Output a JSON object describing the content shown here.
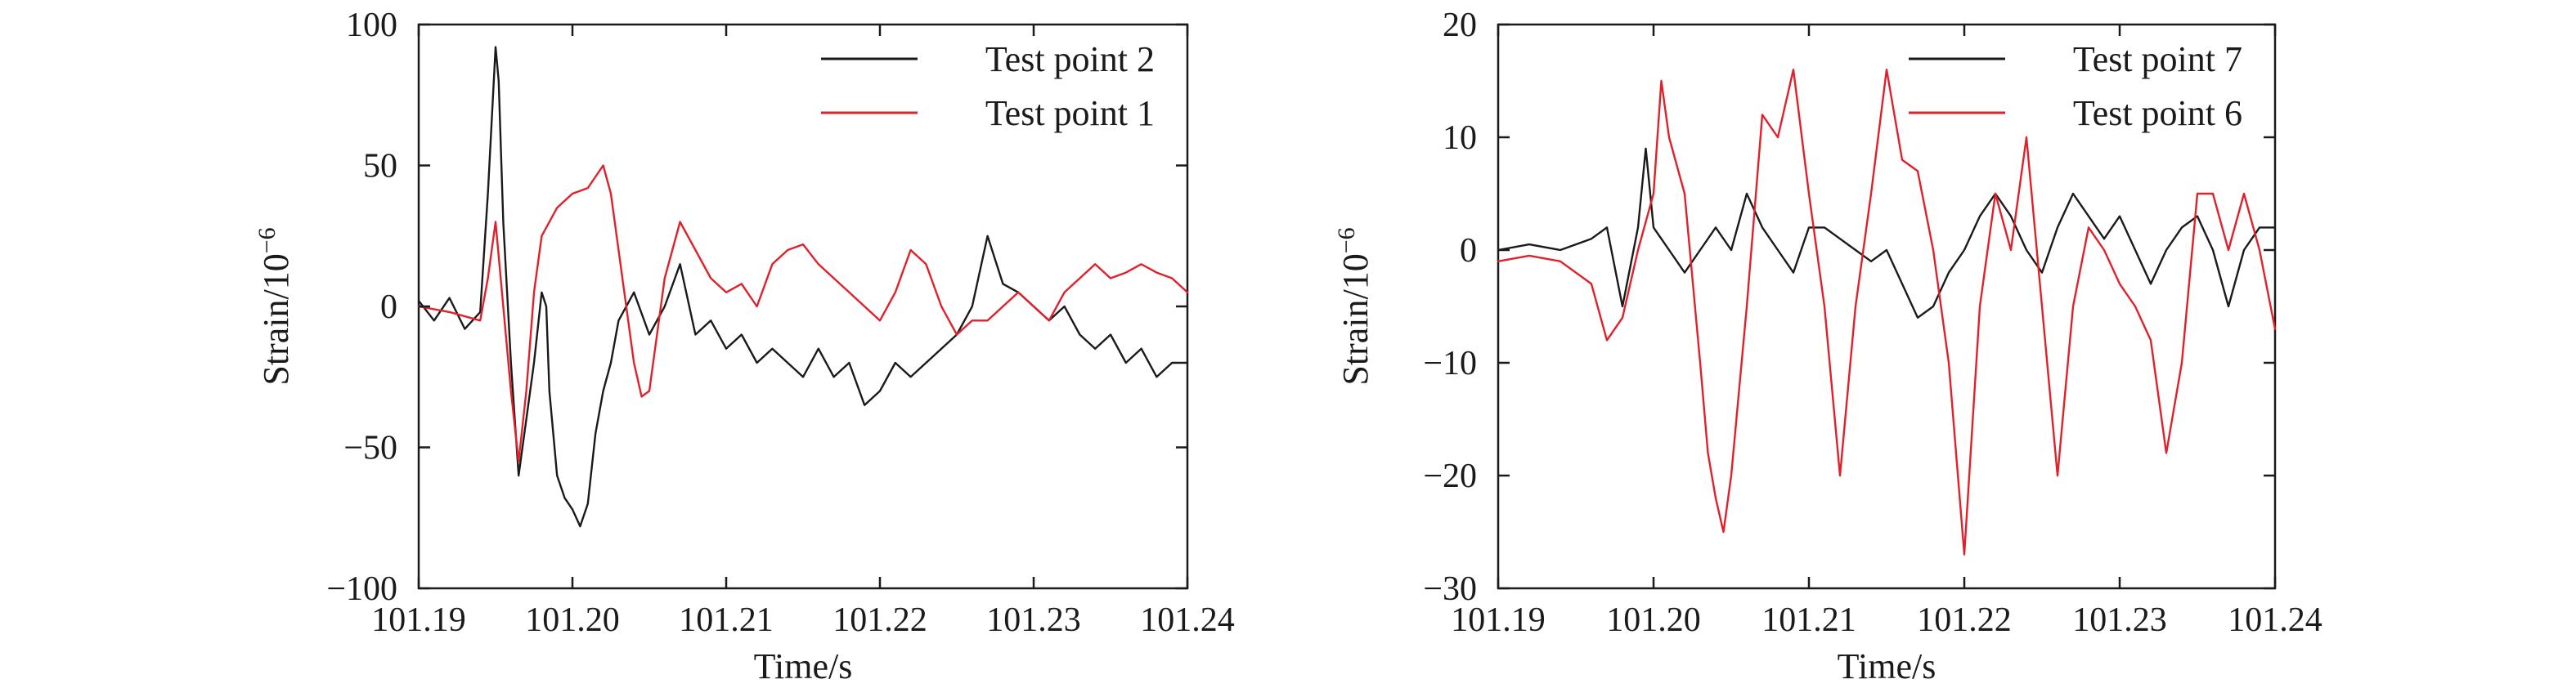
{
  "chart_data": [
    {
      "type": "line",
      "xlabel": "Time/s",
      "ylabel": "Strain/10",
      "ylabel_exponent": "−6",
      "xlim": [
        101.19,
        101.24
      ],
      "ylim": [
        -100,
        100
      ],
      "xticks": [
        101.19,
        101.2,
        101.21,
        101.22,
        101.23,
        101.24
      ],
      "xtick_labels": [
        "101.19",
        "101.20",
        "101.21",
        "101.22",
        "101.23",
        "101.24"
      ],
      "yticks": [
        -100,
        -50,
        0,
        50,
        100
      ],
      "ytick_labels": [
        "−100",
        "−50",
        "0",
        "50",
        "100"
      ],
      "grid": false,
      "legend_position": "top-right",
      "series": [
        {
          "name": "Test point 2",
          "color": "#1a1a1a",
          "x": [
            101.19,
            101.191,
            101.192,
            101.193,
            101.194,
            101.1945,
            101.195,
            101.1952,
            101.1955,
            101.196,
            101.1965,
            101.197,
            101.1975,
            101.198,
            101.1983,
            101.1985,
            101.199,
            101.1995,
            101.2,
            101.2005,
            101.201,
            101.2015,
            101.202,
            101.2025,
            101.203,
            101.204,
            101.205,
            101.206,
            101.207,
            101.208,
            101.209,
            101.21,
            101.211,
            101.212,
            101.213,
            101.214,
            101.215,
            101.216,
            101.217,
            101.218,
            101.219,
            101.22,
            101.221,
            101.222,
            101.223,
            101.224,
            101.225,
            101.226,
            101.227,
            101.228,
            101.229,
            101.23,
            101.231,
            101.232,
            101.233,
            101.234,
            101.235,
            101.236,
            101.237,
            101.238,
            101.239,
            101.24
          ],
          "y": [
            2,
            -5,
            3,
            -8,
            -2,
            40,
            92,
            80,
            30,
            -20,
            -60,
            -40,
            -20,
            5,
            0,
            -30,
            -60,
            -68,
            -72,
            -78,
            -70,
            -45,
            -30,
            -20,
            -5,
            5,
            -10,
            0,
            15,
            -10,
            -5,
            -15,
            -10,
            -20,
            -15,
            -20,
            -25,
            -15,
            -25,
            -20,
            -35,
            -30,
            -20,
            -25,
            -20,
            -15,
            -10,
            0,
            25,
            8,
            5,
            0,
            -5,
            0,
            -10,
            -15,
            -10,
            -20,
            -15,
            -25,
            -20,
            -20
          ]
        },
        {
          "name": "Test point 1",
          "color": "#e0202a",
          "x": [
            101.19,
            101.192,
            101.194,
            101.1945,
            101.195,
            101.1955,
            101.196,
            101.1965,
            101.197,
            101.1975,
            101.198,
            101.199,
            101.2,
            101.201,
            101.202,
            101.2025,
            101.203,
            101.2035,
            101.204,
            101.2045,
            101.205,
            101.2055,
            101.206,
            101.207,
            101.208,
            101.209,
            101.21,
            101.211,
            101.212,
            101.213,
            101.214,
            101.215,
            101.216,
            101.217,
            101.218,
            101.219,
            101.22,
            101.221,
            101.222,
            101.223,
            101.224,
            101.225,
            101.226,
            101.227,
            101.228,
            101.229,
            101.23,
            101.231,
            101.232,
            101.233,
            101.234,
            101.235,
            101.236,
            101.237,
            101.238,
            101.239,
            101.24
          ],
          "y": [
            0,
            -2,
            -5,
            10,
            30,
            0,
            -30,
            -55,
            -30,
            5,
            25,
            35,
            40,
            42,
            50,
            40,
            20,
            0,
            -20,
            -32,
            -30,
            -10,
            10,
            30,
            20,
            10,
            5,
            8,
            0,
            15,
            20,
            22,
            15,
            10,
            5,
            0,
            -5,
            5,
            20,
            15,
            0,
            -10,
            -5,
            -5,
            0,
            5,
            0,
            -5,
            5,
            10,
            15,
            10,
            12,
            15,
            12,
            10,
            5
          ]
        }
      ]
    },
    {
      "type": "line",
      "xlabel": "Time/s",
      "ylabel": "Strain/10",
      "ylabel_exponent": "−6",
      "xlim": [
        101.19,
        101.24
      ],
      "ylim": [
        -30,
        20
      ],
      "xticks": [
        101.19,
        101.2,
        101.21,
        101.22,
        101.23,
        101.24
      ],
      "xtick_labels": [
        "101.19",
        "101.20",
        "101.21",
        "101.22",
        "101.23",
        "101.24"
      ],
      "yticks": [
        -30,
        -20,
        -10,
        0,
        10,
        20
      ],
      "ytick_labels": [
        "−30",
        "−20",
        "−10",
        "0",
        "10",
        "20"
      ],
      "grid": false,
      "legend_position": "top-right",
      "series": [
        {
          "name": "Test point 7",
          "color": "#1a1a1a",
          "x": [
            101.19,
            101.192,
            101.194,
            101.196,
            101.197,
            101.198,
            101.199,
            101.1995,
            101.2,
            101.201,
            101.202,
            101.203,
            101.204,
            101.205,
            101.206,
            101.207,
            101.208,
            101.209,
            101.21,
            101.211,
            101.212,
            101.213,
            101.214,
            101.215,
            101.216,
            101.217,
            101.218,
            101.219,
            101.22,
            101.221,
            101.222,
            101.223,
            101.224,
            101.225,
            101.226,
            101.227,
            101.228,
            101.229,
            101.23,
            101.231,
            101.232,
            101.233,
            101.234,
            101.235,
            101.236,
            101.237,
            101.238,
            101.239,
            101.24
          ],
          "y": [
            0,
            0.5,
            0,
            1,
            2,
            -5,
            2,
            9,
            2,
            0,
            -2,
            0,
            2,
            0,
            5,
            2,
            0,
            -2,
            2,
            2,
            1,
            0,
            -1,
            0,
            -3,
            -6,
            -5,
            -2,
            0,
            3,
            5,
            3,
            0,
            -2,
            2,
            5,
            3,
            1,
            3,
            0,
            -3,
            0,
            2,
            3,
            0,
            -5,
            0,
            2,
            2
          ]
        },
        {
          "name": "Test point 6",
          "color": "#e0202a",
          "x": [
            101.19,
            101.192,
            101.194,
            101.196,
            101.197,
            101.198,
            101.199,
            101.2,
            101.2005,
            101.201,
            101.202,
            101.203,
            101.2035,
            101.204,
            101.2045,
            101.205,
            101.206,
            101.207,
            101.208,
            101.209,
            101.21,
            101.211,
            101.212,
            101.213,
            101.214,
            101.215,
            101.216,
            101.217,
            101.218,
            101.219,
            101.22,
            101.221,
            101.222,
            101.223,
            101.224,
            101.225,
            101.226,
            101.227,
            101.228,
            101.229,
            101.23,
            101.231,
            101.232,
            101.233,
            101.234,
            101.235,
            101.236,
            101.237,
            101.238,
            101.239,
            101.24
          ],
          "y": [
            -1,
            -0.5,
            -1,
            -3,
            -8,
            -6,
            0,
            5,
            15,
            10,
            5,
            -10,
            -18,
            -22,
            -25,
            -20,
            -5,
            12,
            10,
            16,
            5,
            -5,
            -20,
            -5,
            5,
            16,
            8,
            7,
            0,
            -10,
            -27,
            -5,
            5,
            0,
            10,
            -5,
            -20,
            -5,
            2,
            0,
            -3,
            -5,
            -8,
            -18,
            -10,
            5,
            5,
            0,
            5,
            0,
            -7
          ]
        }
      ]
    }
  ]
}
